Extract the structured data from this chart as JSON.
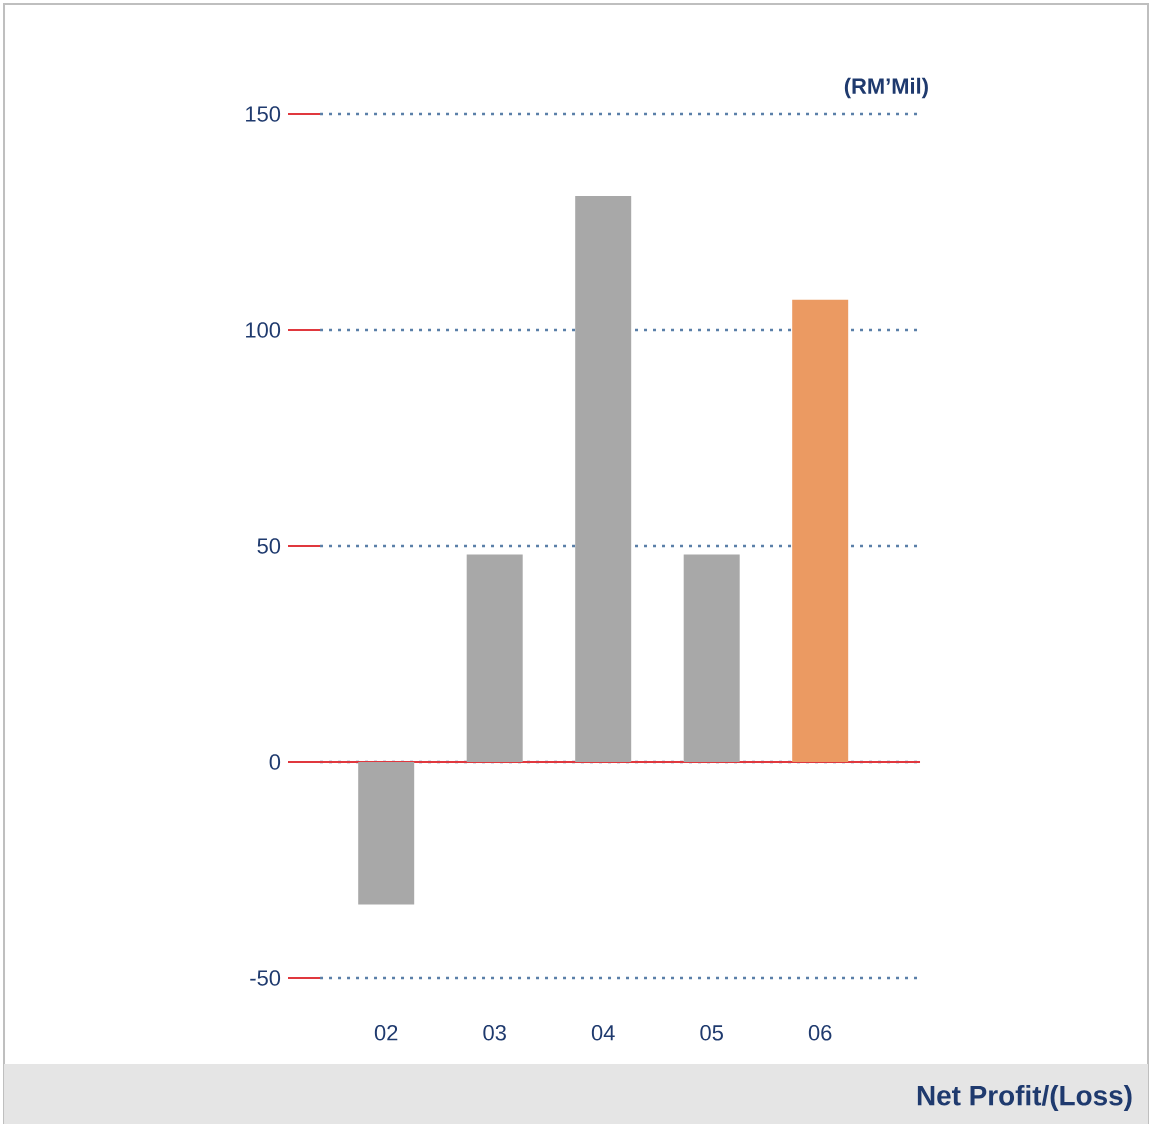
{
  "chart_data": {
    "type": "bar",
    "title": "Net Profit/(Loss)",
    "annotations": [
      "(RM’Mil)"
    ],
    "categories": [
      "02",
      "03",
      "04",
      "05",
      "06"
    ],
    "values": [
      -33,
      48,
      131,
      48,
      107
    ],
    "colors": [
      "#a8a8a8",
      "#a8a8a8",
      "#a8a8a8",
      "#a8a8a8",
      "#eb9a62"
    ],
    "ylim": [
      -50,
      150
    ],
    "yticks": [
      -50,
      0,
      50,
      100,
      150
    ],
    "grid": "y",
    "ref_lines": [
      {
        "axis": "y",
        "value": 0,
        "color": "#e0383e"
      }
    ]
  }
}
